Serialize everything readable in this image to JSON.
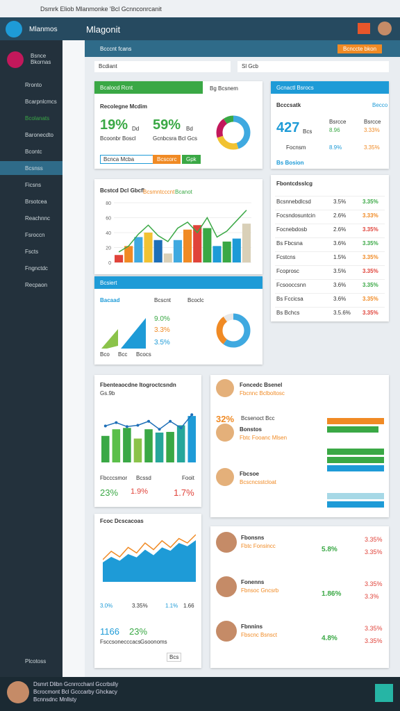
{
  "browser": {
    "tab_title": "Dsmrk Eliob Mlanmonke 'Bcl Gcnnconrcanit"
  },
  "header": {
    "brand": "Mlanmos",
    "page": "Mlagonit"
  },
  "sidebar": {
    "top": "Bsnce Bkornas",
    "items": [
      "Rronto",
      "Bcarpnlcmcs",
      "Bcolanats",
      "Baronecdto",
      "Bcontc",
      "Bcsnss",
      "Ficsns",
      "Brsotcea",
      "Reachnnc",
      "Fsroccn",
      "Fscts",
      "Fngnctdc",
      "Recpaon"
    ],
    "bottom": "Plcotoss"
  },
  "toolbar": {
    "breadcrumb": "Bcccnt fcans",
    "button": "Bcnccte bkon",
    "search1": "Bcdiant",
    "search2": "Sl Gcb"
  },
  "card1": {
    "header": "Bcalocd Rcnt",
    "header2": "Bg Bcsnem",
    "title": "Recolegne Mcdim",
    "kpi1": "19%",
    "kpi1_note": "Dd",
    "kpi1_sub": "Bcoonbr Boscl",
    "kpi2": "59%",
    "kpi2_note": "Bd",
    "kpi2_sub": "Gcnbcsra Bcl Gcs",
    "select": "Bcnca Mcba",
    "btn1": "Bcscorc",
    "btn2": "Gpk",
    "donut": {
      "values": [
        45,
        25,
        20,
        10
      ],
      "colors": [
        "#3fa9e0",
        "#f1c232",
        "#c2185b",
        "#3aa845"
      ]
    }
  },
  "card2": {
    "header": "Gcnactl Bsrocs",
    "title": "Bcccsatk",
    "sub": "Becco",
    "kpi": "427",
    "kpi_note": "Bcs",
    "r1a": "Bsrcce",
    "r1b": "8.96",
    "r1c": "3.33%",
    "r2a": "Focnsm",
    "r2b": "8.9%",
    "r2c": "3.35%",
    "footer": "Bs Bosion"
  },
  "card3": {
    "title": "Bcstcd Dcl Gbcfl",
    "legend": "Bcsmntcccnt",
    "legend2": "Bcanot",
    "yticks": [
      0,
      20,
      40,
      60,
      80
    ],
    "ylim": [
      0,
      80
    ],
    "bars": [
      10,
      22,
      34,
      40,
      30,
      12,
      30,
      44,
      50,
      46,
      22,
      28,
      32,
      52
    ],
    "bar_colors": [
      "#e0433a",
      "#f08a24",
      "#3fa9e0",
      "#f1c232",
      "#1e6fb8",
      "#d9d0b8",
      "#3fa9e0",
      "#f08a24",
      "#e0433a",
      "#3aa845",
      "#1e9bd7",
      "#3aa845",
      "#1e9bd7",
      "#d9d0b8"
    ],
    "line": [
      14,
      22,
      38,
      50,
      36,
      28,
      46,
      54,
      40,
      60,
      34,
      42,
      56,
      70
    ],
    "line_color": "#3aa845"
  },
  "card4": {
    "header": "Bcsiert",
    "label": "Bacaad",
    "col1": "Bcscnt",
    "col2": "Bcoclc",
    "kpi1": "9.0%",
    "kpi2": "3.3%",
    "kpi3": "3.5%",
    "foot1": "Bco",
    "foot2": "Bcc",
    "foot3": "Bcocs",
    "donut": {
      "values": [
        60,
        30,
        10
      ],
      "colors": [
        "#3fa9e0",
        "#f08a24",
        "#e8e8e8"
      ]
    }
  },
  "card5": {
    "title": "Fbontcdsslcg",
    "rows": [
      [
        "Bcsnnebdlcsd",
        "3.5%",
        "3.35%"
      ],
      [
        "Focsndosuntcin",
        "2.6%",
        "3.33%"
      ],
      [
        "Focnebdosb",
        "2.6%",
        "3.35%"
      ],
      [
        "Bs Fbcsna",
        "3.6%",
        "3.35%"
      ],
      [
        "Fcstcns",
        "1.5%",
        "3.35%"
      ],
      [
        "Fcoprosc",
        "3.5%",
        "3.35%"
      ],
      [
        "Fcsooccsnn",
        "3.6%",
        "3.35%"
      ],
      [
        "Bs Fccicsa",
        "3.6%",
        "3.35%"
      ],
      [
        "Bs Bchcs",
        "3.5.6%",
        "3.35%"
      ]
    ]
  },
  "card6": {
    "title": "Fbenteaocdne ltogroctcsndn",
    "sub": "Gs.9b",
    "bars": [
      40,
      50,
      52,
      36,
      50,
      45,
      46,
      56,
      70
    ],
    "line": [
      55,
      60,
      54,
      56,
      62,
      50,
      62,
      52,
      72
    ],
    "ylim": [
      0,
      90
    ],
    "l1": "Fbcccsmor",
    "l2": "Bcssd",
    "l3": "Fooit",
    "k1": "23%",
    "k2": "1.9%",
    "k3": "1.7%"
  },
  "card7": {
    "title": "Fcoc Dcscacoas",
    "area": [
      35,
      45,
      38,
      50,
      44,
      58,
      48,
      62,
      56,
      70,
      64,
      75
    ],
    "line": [
      40,
      55,
      45,
      62,
      52,
      70,
      58,
      74,
      62,
      78,
      70,
      85
    ],
    "ylim": [
      0,
      100
    ],
    "l1": "3.0%",
    "l2": "3.35%",
    "l3": "1.1%",
    "l4": "1.66",
    "k1": "1166",
    "k2": "23%",
    "s1": "Fsccsonecccacs",
    "s2": "Gsoonoms",
    "btn": "Bcs"
  },
  "card8": {
    "people": [
      {
        "name": "Foncedc Bsenel",
        "role": "Fbcnnc Bclboltosc",
        "kpi": "32%",
        "kpi_note": "Bcsenoct Bcc",
        "bars": [
          100,
          90
        ],
        "bar_colors": [
          "#f08a24",
          "#3aa845"
        ]
      },
      {
        "name": "Bonstos",
        "role": "Fbtc Fooanc Mlsen",
        "kpi": "",
        "kpi_note": "",
        "bars": [
          100,
          100,
          100
        ],
        "bar_colors": [
          "#3aa845",
          "#3aa845",
          "#1e9bd7"
        ]
      },
      {
        "name": "Fbcsoe",
        "role": "Bcscncsstcloat",
        "kpi": "",
        "kpi_note": "",
        "bars": [
          100,
          100
        ],
        "bar_colors": [
          "#a6d8e6",
          "#1e9bd7"
        ]
      }
    ]
  },
  "card9": {
    "people": [
      {
        "name": "Fbonsns",
        "role": "Fbtc Fonsincc",
        "a": "5.8%",
        "b": "3.35%",
        "c": "3.35%"
      },
      {
        "name": "Fonenns",
        "role": "Fbnsoc Gncsrb",
        "a": "1.86%",
        "b": "3.35%",
        "c": "3.3%"
      },
      {
        "name": "Fbnnins",
        "role": "Fbscnc Bsnsct",
        "a": "4.8%",
        "b": "3.35%",
        "c": "3.35%"
      }
    ]
  },
  "footer": {
    "l1": "Dsmrt Dlibn Gcnrrcchanl Gccrbslly",
    "l2": "Bcrocmont Bcl Gcccarby Ghckacy",
    "l3": "Bcnnsdnc Mnllsty"
  }
}
